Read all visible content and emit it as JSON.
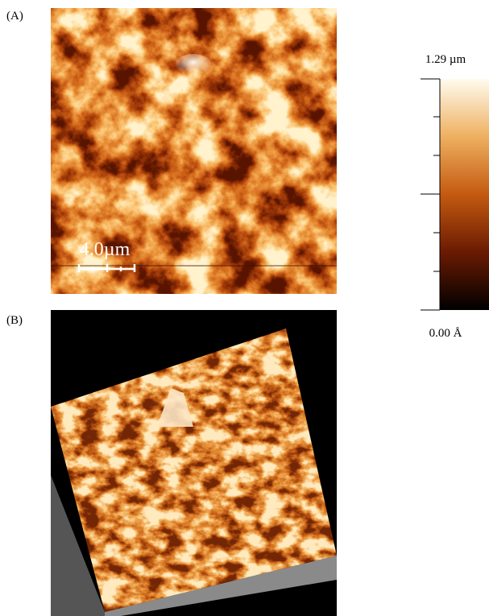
{
  "panels": [
    {
      "label": "(A)",
      "scale_bar": "4.0µm",
      "color_scale": {
        "max": "1.29 µm",
        "min": "0.00 Å"
      }
    },
    {
      "label": "(B)"
    }
  ]
}
